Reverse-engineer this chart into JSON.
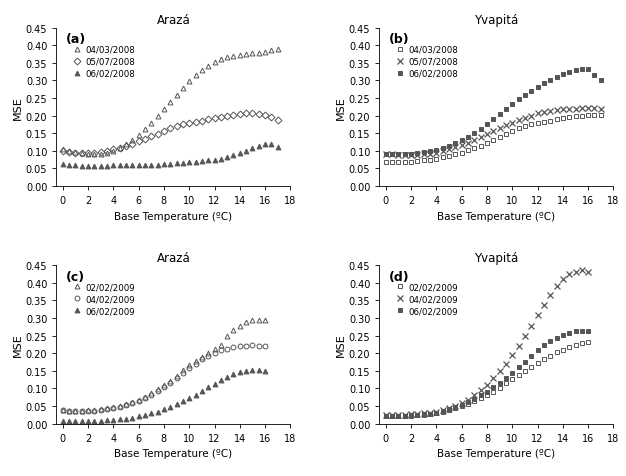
{
  "x": [
    0,
    0.5,
    1,
    1.5,
    2,
    2.5,
    3,
    3.5,
    4,
    4.5,
    5,
    5.5,
    6,
    6.5,
    7,
    7.5,
    8,
    8.5,
    9,
    9.5,
    10,
    10.5,
    11,
    11.5,
    12,
    12.5,
    13,
    13.5,
    14,
    14.5,
    15,
    15.5,
    16,
    16.5,
    17
  ],
  "panel_a": {
    "title": "Arazá",
    "label": "(a)",
    "legend": [
      "04/03/2008",
      "05/07/2008",
      "06/02/2008"
    ],
    "markers": [
      "^",
      "D",
      "^"
    ],
    "fillstyles": [
      "none",
      "none",
      "full"
    ],
    "series1": [
      0.105,
      0.1,
      0.096,
      0.093,
      0.091,
      0.09,
      0.091,
      0.095,
      0.1,
      0.108,
      0.118,
      0.13,
      0.145,
      0.162,
      0.18,
      0.198,
      0.218,
      0.238,
      0.258,
      0.278,
      0.298,
      0.315,
      0.33,
      0.342,
      0.352,
      0.36,
      0.366,
      0.37,
      0.373,
      0.375,
      0.377,
      0.378,
      0.38,
      0.385,
      0.388
    ],
    "series2": [
      0.1,
      0.097,
      0.095,
      0.094,
      0.094,
      0.095,
      0.097,
      0.1,
      0.104,
      0.109,
      0.114,
      0.12,
      0.127,
      0.134,
      0.141,
      0.149,
      0.157,
      0.164,
      0.17,
      0.175,
      0.179,
      0.183,
      0.186,
      0.189,
      0.192,
      0.196,
      0.199,
      0.202,
      0.204,
      0.206,
      0.206,
      0.205,
      0.202,
      0.196,
      0.188
    ],
    "series3": [
      0.062,
      0.06,
      0.059,
      0.058,
      0.057,
      0.057,
      0.057,
      0.058,
      0.059,
      0.059,
      0.059,
      0.059,
      0.059,
      0.06,
      0.06,
      0.061,
      0.062,
      0.063,
      0.065,
      0.066,
      0.067,
      0.069,
      0.071,
      0.073,
      0.075,
      0.078,
      0.082,
      0.087,
      0.093,
      0.1,
      0.108,
      0.115,
      0.12,
      0.118,
      0.112
    ]
  },
  "panel_b": {
    "title": "Yvapitá",
    "label": "(b)",
    "legend": [
      "04/03/2008",
      "05/07/2008",
      "06/02/2008"
    ],
    "markers": [
      "s",
      "x",
      "s"
    ],
    "fillstyles": [
      "none",
      "none",
      "full"
    ],
    "series1": [
      0.068,
      0.067,
      0.067,
      0.068,
      0.069,
      0.071,
      0.073,
      0.075,
      0.078,
      0.081,
      0.085,
      0.09,
      0.095,
      0.101,
      0.108,
      0.115,
      0.123,
      0.131,
      0.139,
      0.148,
      0.157,
      0.164,
      0.17,
      0.175,
      0.179,
      0.183,
      0.186,
      0.19,
      0.193,
      0.196,
      0.198,
      0.2,
      0.202,
      0.203,
      0.202
    ],
    "series2": [
      0.092,
      0.09,
      0.089,
      0.088,
      0.088,
      0.089,
      0.09,
      0.092,
      0.095,
      0.099,
      0.104,
      0.11,
      0.116,
      0.123,
      0.131,
      0.139,
      0.148,
      0.157,
      0.165,
      0.173,
      0.18,
      0.187,
      0.194,
      0.2,
      0.206,
      0.211,
      0.214,
      0.216,
      0.218,
      0.219,
      0.22,
      0.221,
      0.222,
      0.222,
      0.22
    ],
    "series3": [
      0.092,
      0.091,
      0.091,
      0.091,
      0.092,
      0.094,
      0.096,
      0.099,
      0.103,
      0.108,
      0.114,
      0.121,
      0.13,
      0.14,
      0.151,
      0.163,
      0.176,
      0.19,
      0.204,
      0.218,
      0.232,
      0.246,
      0.259,
      0.271,
      0.282,
      0.292,
      0.3,
      0.31,
      0.318,
      0.325,
      0.33,
      0.332,
      0.332,
      0.316,
      0.3
    ]
  },
  "panel_c": {
    "title": "Arazá",
    "label": "(c)",
    "legend": [
      "02/02/2009",
      "04/02/2009",
      "06/02/2009"
    ],
    "markers": [
      "^",
      "o",
      "^"
    ],
    "fillstyles": [
      "none",
      "none",
      "full"
    ],
    "series1": [
      0.038,
      0.037,
      0.037,
      0.037,
      0.038,
      0.039,
      0.041,
      0.043,
      0.046,
      0.05,
      0.055,
      0.061,
      0.068,
      0.076,
      0.086,
      0.097,
      0.109,
      0.122,
      0.136,
      0.151,
      0.165,
      0.178,
      0.19,
      0.201,
      0.211,
      0.222,
      0.248,
      0.265,
      0.278,
      0.288,
      0.293,
      0.294,
      0.293,
      null,
      null
    ],
    "series2": [
      0.038,
      0.037,
      0.036,
      0.036,
      0.036,
      0.037,
      0.038,
      0.04,
      0.043,
      0.047,
      0.052,
      0.058,
      0.065,
      0.073,
      0.082,
      0.092,
      0.104,
      0.116,
      0.129,
      0.143,
      0.157,
      0.17,
      0.182,
      0.192,
      0.201,
      0.208,
      0.213,
      0.217,
      0.22,
      0.221,
      0.222,
      0.221,
      0.22,
      null,
      null
    ],
    "series3": [
      0.008,
      0.007,
      0.007,
      0.007,
      0.007,
      0.007,
      0.008,
      0.009,
      0.01,
      0.012,
      0.014,
      0.017,
      0.02,
      0.024,
      0.029,
      0.034,
      0.04,
      0.047,
      0.055,
      0.063,
      0.072,
      0.082,
      0.092,
      0.103,
      0.113,
      0.124,
      0.133,
      0.14,
      0.146,
      0.149,
      0.151,
      0.151,
      0.15,
      null,
      null
    ]
  },
  "panel_d": {
    "title": "Yvapitá",
    "label": "(d)",
    "legend": [
      "02/02/2009",
      "04/02/2009",
      "06/02/2009"
    ],
    "markers": [
      "s",
      "x",
      "s"
    ],
    "fillstyles": [
      "none",
      "none",
      "full"
    ],
    "series1": [
      0.02,
      0.02,
      0.02,
      0.021,
      0.022,
      0.023,
      0.025,
      0.027,
      0.03,
      0.034,
      0.038,
      0.043,
      0.049,
      0.056,
      0.063,
      0.072,
      0.081,
      0.091,
      0.102,
      0.114,
      0.126,
      0.138,
      0.15,
      0.162,
      0.173,
      0.183,
      0.193,
      0.202,
      0.21,
      0.217,
      0.223,
      0.228,
      0.232,
      null,
      null
    ],
    "series2": [
      0.025,
      0.025,
      0.025,
      0.025,
      0.026,
      0.027,
      0.029,
      0.031,
      0.034,
      0.038,
      0.043,
      0.05,
      0.058,
      0.068,
      0.08,
      0.094,
      0.11,
      0.128,
      0.148,
      0.17,
      0.194,
      0.22,
      0.248,
      0.278,
      0.308,
      0.338,
      0.365,
      0.39,
      0.41,
      0.425,
      0.432,
      0.435,
      0.432,
      null,
      null
    ],
    "series3": [
      0.022,
      0.022,
      0.022,
      0.022,
      0.023,
      0.024,
      0.026,
      0.028,
      0.031,
      0.035,
      0.04,
      0.046,
      0.053,
      0.061,
      0.07,
      0.08,
      0.091,
      0.103,
      0.116,
      0.13,
      0.145,
      0.16,
      0.176,
      0.192,
      0.208,
      0.222,
      0.234,
      0.244,
      0.252,
      0.258,
      0.262,
      0.264,
      0.264,
      null,
      null
    ]
  },
  "ylim": [
    0.0,
    0.45
  ],
  "yticks": [
    0.0,
    0.05,
    0.1,
    0.15,
    0.2,
    0.25,
    0.3,
    0.35,
    0.4,
    0.45
  ],
  "xlim": [
    -0.5,
    18
  ],
  "xticks": [
    0,
    2,
    4,
    6,
    8,
    10,
    12,
    14,
    16,
    18
  ],
  "xlabel": "Base Temperature (ºC)",
  "ylabel": "MSE",
  "markersize": 3.5,
  "color": "#555555"
}
